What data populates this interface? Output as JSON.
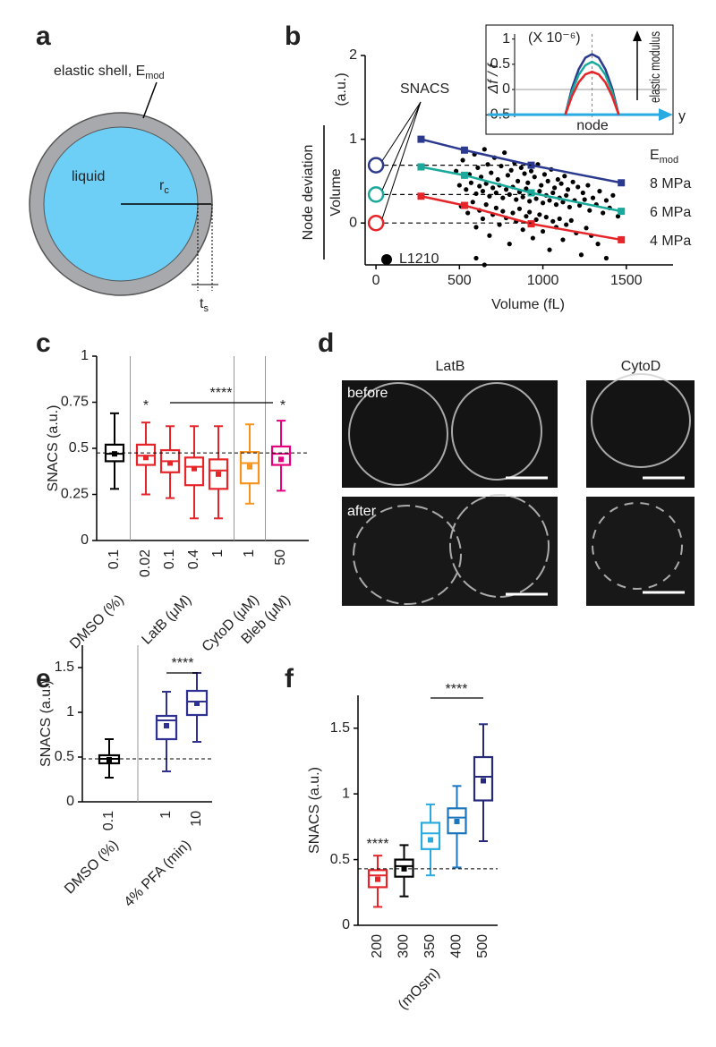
{
  "panel_labels": [
    "a",
    "b",
    "c",
    "d",
    "e",
    "f"
  ],
  "diagram_a": {
    "shell_label": "elastic shell, E",
    "shell_label_sub": "mod",
    "core_label": "liquid",
    "radius_label": "r",
    "radius_sub": "c",
    "thickness_label": "t",
    "thickness_sub": "s"
  },
  "micrographs_d": {
    "columns": [
      "LatB",
      "CytoD"
    ],
    "rows": [
      "before",
      "after"
    ]
  },
  "chart_data": [
    {
      "type": "scatter",
      "xlabel": "Volume (fL)",
      "ylabel": "Node deviation",
      "ylabel_denominator": "Volume",
      "ylabel_unit": "(a.u.)",
      "xlim": [
        -65,
        1780
      ],
      "xticks": [
        0,
        500,
        1000,
        1500
      ],
      "ylim": [
        -0.5,
        2
      ],
      "yticks": [
        0,
        1,
        2
      ],
      "modulus_label": "E",
      "modulus_sub": "mod",
      "snacs": {
        "label": "SNACS",
        "values": [
          0.69,
          0.34,
          0
        ]
      },
      "scatter": {
        "name": "L1210",
        "color": "#000000",
        "x": [
          480,
          520,
          560,
          590,
          610,
          630,
          650,
          670,
          690,
          710,
          730,
          750,
          770,
          790,
          810,
          830,
          850,
          870,
          890,
          910,
          930,
          950,
          970,
          990,
          1010,
          1030,
          1050,
          1070,
          1090,
          1110,
          1130,
          1150,
          1180,
          1210,
          1240,
          1270,
          1300,
          1340,
          1380,
          1420,
          500,
          540,
          570,
          600,
          620,
          640,
          660,
          680,
          700,
          720,
          740,
          760,
          780,
          800,
          820,
          840,
          860,
          880,
          900,
          920,
          940,
          960,
          980,
          1000,
          1020,
          1040,
          1060,
          1080,
          1100,
          1120,
          1140,
          1160,
          1190,
          1220,
          1250,
          1280,
          1320,
          1360,
          1400,
          1450,
          510,
          550,
          580,
          600,
          620,
          640,
          660,
          680,
          700,
          720,
          740,
          760,
          780,
          800,
          820,
          840,
          860,
          880,
          900,
          920,
          940,
          960,
          980,
          1000,
          1020,
          1040,
          1060,
          1080,
          1100,
          1120,
          1140,
          1170,
          1200,
          1230,
          1260,
          1290,
          1330,
          1380,
          600,
          650
        ],
        "values": [
          0.62,
          0.75,
          0.58,
          0.82,
          0.66,
          0.55,
          0.88,
          0.7,
          0.6,
          0.78,
          0.52,
          0.68,
          0.84,
          0.57,
          0.63,
          0.72,
          0.5,
          0.66,
          0.59,
          0.48,
          0.62,
          0.55,
          0.7,
          0.45,
          0.58,
          0.5,
          0.64,
          0.42,
          0.52,
          0.47,
          0.56,
          0.4,
          0.49,
          0.43,
          0.36,
          0.45,
          0.3,
          0.38,
          0.27,
          0.33,
          0.45,
          0.4,
          0.48,
          0.35,
          0.44,
          0.38,
          0.47,
          0.32,
          0.42,
          0.36,
          0.45,
          0.3,
          0.4,
          0.34,
          0.43,
          0.28,
          0.37,
          0.31,
          0.41,
          0.26,
          0.35,
          0.29,
          0.38,
          0.24,
          0.33,
          0.27,
          0.36,
          0.22,
          0.3,
          0.25,
          0.33,
          0.19,
          0.27,
          0.21,
          0.28,
          0.15,
          0.22,
          0.12,
          0.18,
          0.08,
          0.2,
          0.12,
          0.25,
          -0.05,
          0.15,
          0.05,
          0.22,
          -0.15,
          0.1,
          0.18,
          -0.02,
          0.14,
          0.06,
          -0.25,
          0.12,
          0.02,
          0.17,
          -0.08,
          0.08,
          0.13,
          -0.18,
          0.04,
          0.1,
          -0.1,
          0.07,
          -0.32,
          0.02,
          -0.05,
          0.05,
          -0.2,
          -0.02,
          0.03,
          -0.12,
          -0.38,
          -0.06,
          -0.15,
          -0.25,
          -0.42,
          -0.42,
          -0.5
        ]
      },
      "series": [
        {
          "name": "8 MPa",
          "color": "#2b3a8f",
          "x": [
            270,
            530,
            930,
            1470
          ],
          "values": [
            1.0,
            0.87,
            0.69,
            0.48
          ]
        },
        {
          "name": "6 MPa",
          "color": "#1aa99b",
          "x": [
            270,
            530,
            930,
            1470
          ],
          "values": [
            0.67,
            0.57,
            0.36,
            0.14
          ]
        },
        {
          "name": "4 MPa",
          "color": "#e52529",
          "x": [
            270,
            530,
            930,
            1470
          ],
          "values": [
            0.32,
            0.21,
            -0.01,
            -0.2
          ]
        }
      ]
    },
    {
      "type": "line",
      "ylabel": "Δf / f",
      "y_multiplier": "(X 10⁻⁶)",
      "xlabel": "node",
      "x_axis_end": "y",
      "annotation": "elastic modulus",
      "x": [
        -1,
        -0.75,
        -0.5,
        -0.25,
        0,
        0.25,
        0.5,
        0.75,
        1
      ],
      "xlim": [
        -2.9,
        2.8
      ],
      "ylim": [
        -0.55,
        1.1
      ],
      "yticks": [
        1,
        0.5,
        0,
        -0.5
      ],
      "series": [
        {
          "color": "#2b3a8f",
          "values": [
            -0.5,
            0.03,
            0.4,
            0.63,
            0.7,
            0.63,
            0.4,
            0.03,
            -0.5
          ]
        },
        {
          "color": "#1aa99b",
          "values": [
            -0.5,
            -0.04,
            0.29,
            0.48,
            0.55,
            0.48,
            0.29,
            -0.04,
            -0.5
          ]
        },
        {
          "color": "#e52529",
          "values": [
            -0.5,
            -0.13,
            0.14,
            0.3,
            0.35,
            0.3,
            0.14,
            -0.13,
            -0.5
          ]
        }
      ]
    },
    {
      "type": "box",
      "ylabel": "SNACS (a.u.)",
      "ylim": [
        0,
        1
      ],
      "yticks": [
        0,
        0.25,
        0.5,
        0.75,
        1
      ],
      "reference_line": 0.475,
      "annotations": [
        "*",
        "****",
        "*"
      ],
      "series": [
        {
          "name": "DMSO (%)",
          "color": "#000000",
          "categories": [
            "0.1"
          ],
          "whisker_low": [
            0.28
          ],
          "q1": [
            0.43
          ],
          "median": [
            0.47
          ],
          "mean": [
            0.47
          ],
          "q3": [
            0.52
          ],
          "whisker_high": [
            0.69
          ]
        },
        {
          "name": "LatB (μM)",
          "color": "#e52529",
          "categories": [
            "0.02",
            "0.1",
            "0.4",
            "1"
          ],
          "whisker_low": [
            0.25,
            0.23,
            0.12,
            0.12
          ],
          "q1": [
            0.41,
            0.37,
            0.3,
            0.28
          ],
          "median": [
            0.46,
            0.43,
            0.4,
            0.38
          ],
          "mean": [
            0.45,
            0.42,
            0.39,
            0.36
          ],
          "q3": [
            0.52,
            0.49,
            0.45,
            0.44
          ],
          "whisker_high": [
            0.64,
            0.62,
            0.62,
            0.62
          ]
        },
        {
          "name": "CytoD (μM)",
          "color": "#f7941d",
          "categories": [
            "1"
          ],
          "whisker_low": [
            0.2
          ],
          "q1": [
            0.31
          ],
          "median": [
            0.42
          ],
          "mean": [
            0.4
          ],
          "q3": [
            0.48
          ],
          "whisker_high": [
            0.63
          ]
        },
        {
          "name": "Bleb (μM)",
          "color": "#e5007e",
          "categories": [
            "50"
          ],
          "whisker_low": [
            0.27
          ],
          "q1": [
            0.41
          ],
          "median": [
            0.47
          ],
          "mean": [
            0.44
          ],
          "q3": [
            0.51
          ],
          "whisker_high": [
            0.65
          ]
        }
      ]
    },
    {
      "type": "box",
      "ylabel": "SNACS (a.u.)",
      "ylim": [
        0,
        1.75
      ],
      "yticks": [
        0,
        0.5,
        1,
        1.5
      ],
      "reference_line": 0.48,
      "annotations": [
        "****"
      ],
      "series": [
        {
          "name": "DMSO (%)",
          "color": "#000000",
          "categories": [
            "0.1"
          ],
          "whisker_low": [
            0.27
          ],
          "q1": [
            0.43
          ],
          "median": [
            0.48
          ],
          "mean": [
            0.47
          ],
          "q3": [
            0.52
          ],
          "whisker_high": [
            0.7
          ]
        },
        {
          "name": "4% PFA (min)",
          "color": "#2e3192",
          "categories": [
            "1",
            "10"
          ],
          "whisker_low": [
            0.34,
            0.67
          ],
          "q1": [
            0.7,
            0.97
          ],
          "median": [
            0.91,
            1.12
          ],
          "mean": [
            0.85,
            1.1
          ],
          "q3": [
            0.96,
            1.24
          ],
          "whisker_high": [
            1.23,
            1.44
          ]
        }
      ]
    },
    {
      "type": "box",
      "ylabel": "SNACS (a.u.)",
      "ylim": [
        0,
        1.75
      ],
      "yticks": [
        0,
        0.5,
        1,
        1.5
      ],
      "reference_line": 0.43,
      "annotations": [
        "****",
        "****"
      ],
      "series": [
        {
          "name": "(mOsm)",
          "colors": [
            "#e52529",
            "#000000",
            "#29abe2",
            "#1b75bc",
            "#262a7a"
          ],
          "categories": [
            "200",
            "300",
            "350",
            "400",
            "500"
          ],
          "whisker_low": [
            0.14,
            0.22,
            0.38,
            0.44,
            0.64
          ],
          "q1": [
            0.29,
            0.37,
            0.58,
            0.7,
            0.95
          ],
          "median": [
            0.38,
            0.45,
            0.7,
            0.82,
            1.13
          ],
          "mean": [
            0.35,
            0.43,
            0.65,
            0.79,
            1.1
          ],
          "q3": [
            0.42,
            0.5,
            0.78,
            0.89,
            1.28
          ],
          "whisker_high": [
            0.53,
            0.61,
            0.92,
            1.06,
            1.53
          ]
        }
      ]
    }
  ]
}
